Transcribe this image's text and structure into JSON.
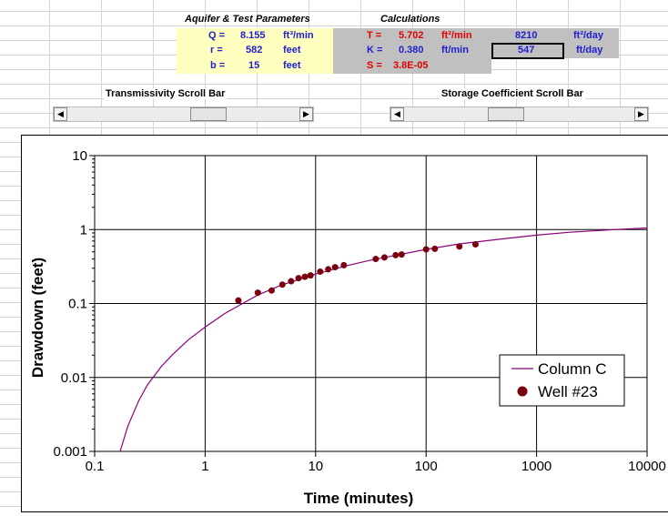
{
  "params": {
    "header": "Aquifer & Test Parameters",
    "rows": [
      {
        "label": "Q =",
        "value": "8.155",
        "unit": "ft³/min"
      },
      {
        "label": "r =",
        "value": "582",
        "unit": "feet"
      },
      {
        "label": "b =",
        "value": "15",
        "unit": "feet"
      }
    ]
  },
  "calculations": {
    "header": "Calculations",
    "T": {
      "label": "T =",
      "value": "5.702",
      "unit": "ft²/min",
      "day_value": "8210",
      "day_unit": "ft²/day"
    },
    "K": {
      "label": "K =",
      "value": "0.380",
      "unit": "ft/min",
      "day_value": "547",
      "day_unit": "ft/day"
    },
    "S": {
      "label": "S =",
      "value": "3.8E-05"
    }
  },
  "scrollbars": {
    "transmissivity": {
      "title": "Transmissivity Scroll Bar",
      "position": 0.62
    },
    "storage": {
      "title": "Storage Coefficient Scroll Bar",
      "position": 0.43
    }
  },
  "colors": {
    "accent_blue": "#1f1fcf",
    "accent_red": "#e00000",
    "curve": "#8b007b",
    "points": "#7a0010"
  },
  "chart_data": {
    "type": "scatter",
    "xlabel": "Time (minutes)",
    "ylabel": "Drawdown (feet)",
    "x_scale": "log",
    "y_scale": "log",
    "xlim": [
      0.1,
      10000
    ],
    "ylim": [
      0.001,
      10
    ],
    "x_ticks": [
      "0.1",
      "1",
      "10",
      "100",
      "1000",
      "10000"
    ],
    "y_ticks": [
      "10",
      "1",
      "0.1",
      "0.01",
      "0.001"
    ],
    "grid": true,
    "legend": "right",
    "series": [
      {
        "name": "Column C",
        "kind": "line",
        "x": [
          0.17,
          0.2,
          0.25,
          0.3,
          0.4,
          0.5,
          0.7,
          1,
          1.5,
          2,
          3,
          5,
          7,
          10,
          20,
          30,
          50,
          100,
          200,
          500,
          1000,
          2000,
          5000,
          10000
        ],
        "y": [
          0.001,
          0.0022,
          0.0048,
          0.0079,
          0.014,
          0.02,
          0.032,
          0.048,
          0.073,
          0.093,
          0.13,
          0.18,
          0.21,
          0.25,
          0.33,
          0.38,
          0.44,
          0.54,
          0.64,
          0.75,
          0.84,
          0.92,
          1.0,
          1.05
        ]
      },
      {
        "name": "Well #23",
        "kind": "scatter",
        "x": [
          2,
          3,
          4,
          5,
          6,
          7,
          8,
          9,
          11,
          13,
          15,
          18,
          35,
          42,
          53,
          60,
          100,
          120,
          200,
          280
        ],
        "y": [
          0.11,
          0.14,
          0.15,
          0.18,
          0.2,
          0.22,
          0.23,
          0.24,
          0.27,
          0.29,
          0.31,
          0.33,
          0.4,
          0.42,
          0.45,
          0.46,
          0.54,
          0.55,
          0.59,
          0.63
        ]
      }
    ]
  }
}
